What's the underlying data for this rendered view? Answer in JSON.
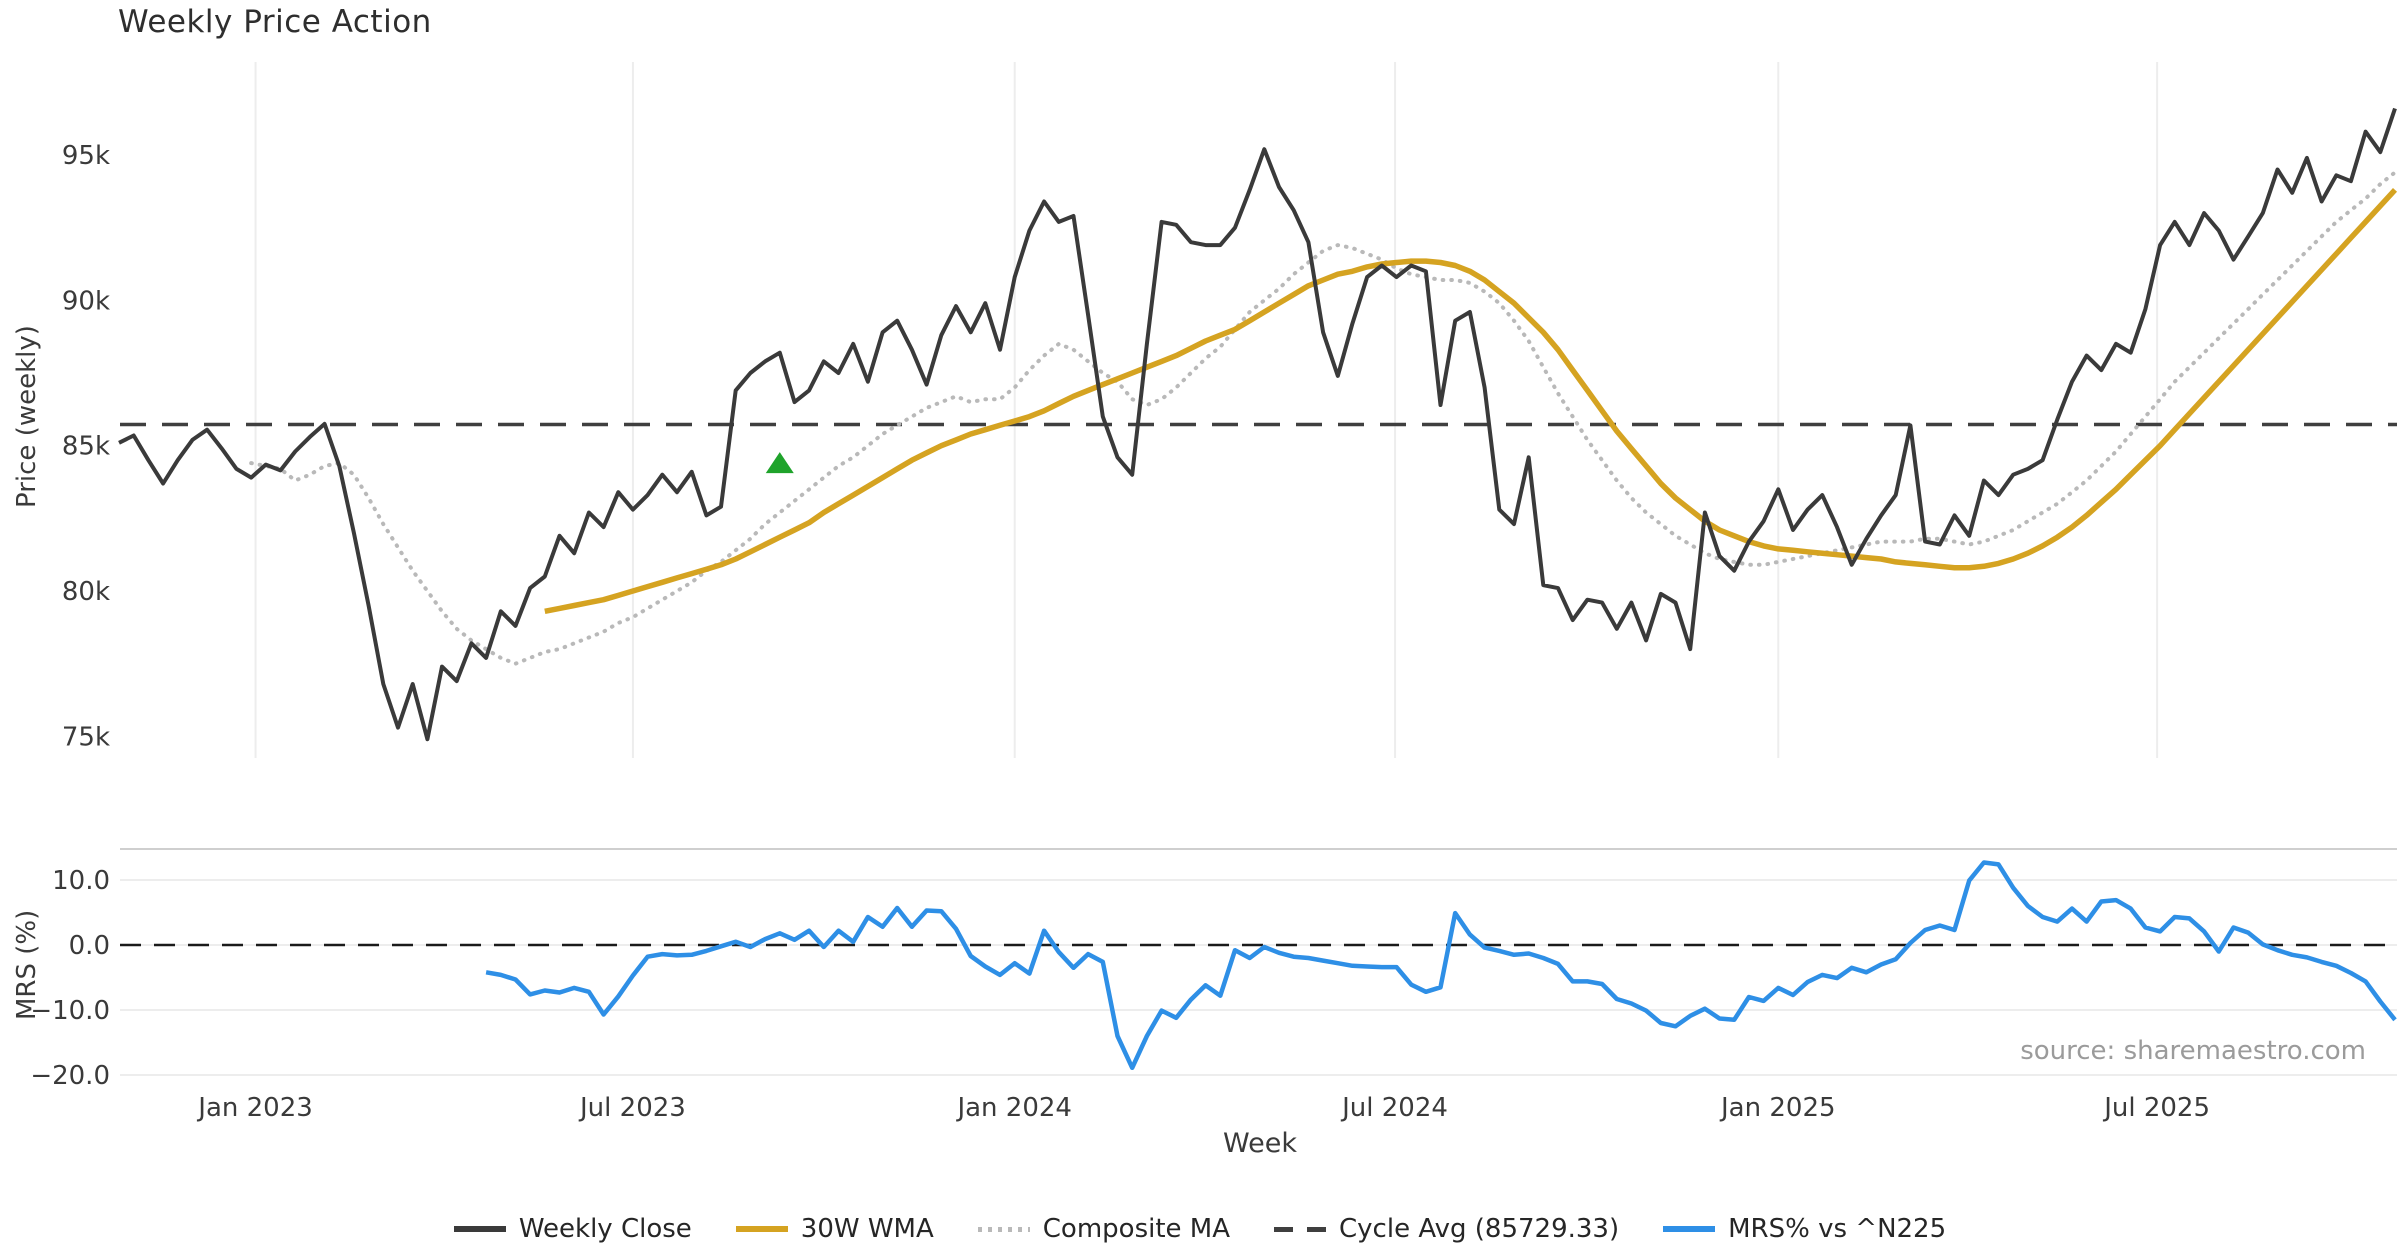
{
  "title": "Weekly Price Action",
  "source_note": "source: sharemaestro.com",
  "axes": {
    "price_ylabel": "Price (weekly)",
    "mrs_ylabel": "MRS (%)",
    "xlabel": "Week",
    "price_ticks": [
      {
        "label": "95k",
        "value": 95000
      },
      {
        "label": "90k",
        "value": 90000
      },
      {
        "label": "85k",
        "value": 85000
      },
      {
        "label": "80k",
        "value": 80000
      },
      {
        "label": "75k",
        "value": 75000
      }
    ],
    "mrs_ticks": [
      {
        "label": "10.0",
        "value": 10
      },
      {
        "label": "0.0",
        "value": 0
      },
      {
        "label": "−10.0",
        "value": -10
      },
      {
        "label": "−20.0",
        "value": -20
      }
    ],
    "x_ticks": [
      {
        "week": 9.3,
        "label": "Jan 2023"
      },
      {
        "week": 35.0,
        "label": "Jul 2023"
      },
      {
        "week": 61.0,
        "label": "Jan 2024"
      },
      {
        "week": 86.9,
        "label": "Jul 2024"
      },
      {
        "week": 113.0,
        "label": "Jan 2025"
      },
      {
        "week": 138.8,
        "label": "Jul 2025"
      }
    ]
  },
  "legend": {
    "items": [
      {
        "label": "Weekly Close",
        "style": "solid",
        "color": "#3a3a3a"
      },
      {
        "label": "30W WMA",
        "style": "solid",
        "color": "#d5a321"
      },
      {
        "label": "Composite MA",
        "style": "dotted",
        "color": "#b9b9b9"
      },
      {
        "label": "Cycle Avg (85729.33)",
        "style": "dashed",
        "color": "#3f3f3f"
      },
      {
        "label": "MRS% vs ^N225",
        "style": "solid",
        "color": "#2e8fe6"
      }
    ]
  },
  "colors": {
    "close": "#3a3a3a",
    "wma30": "#d5a321",
    "composite": "#b9b9b9",
    "cycle_avg": "#3f3f3f",
    "mrs": "#2e8fe6",
    "marker": "#1fa32b",
    "grid": "#ededed",
    "spine": "#cfcfcf",
    "zero_dash": "#1a1a1a",
    "text": "#3a3a3a",
    "muted": "#9b9b9b"
  },
  "chart_data": {
    "type": "line",
    "x_unit": "week_index",
    "weeks_total": 156,
    "title": "Weekly Price Action",
    "panels": [
      {
        "name": "price",
        "ylabel": "Price (weekly)",
        "ylim": [
          74250,
          98200
        ],
        "grid": "vertical"
      },
      {
        "name": "mrs",
        "ylabel": "MRS (%)",
        "ylim": [
          -20.5,
          14.8
        ],
        "grid": "horizontal"
      }
    ],
    "cycle_avg": 85729.33,
    "marker": {
      "shape": "triangle-up",
      "color": "#1fa32b",
      "week": 45,
      "price": 84400
    },
    "series": [
      {
        "name": "Weekly Close",
        "panel": "price",
        "style": "solid",
        "color": "#3a3a3a",
        "width": 4,
        "values": [
          85100,
          85350,
          84500,
          83700,
          84500,
          85200,
          85550,
          84900,
          84200,
          83900,
          84350,
          84150,
          84800,
          85300,
          85750,
          84300,
          82000,
          79500,
          76800,
          75300,
          76800,
          74900,
          77400,
          76900,
          78200,
          77700,
          79300,
          78800,
          80100,
          80500,
          81900,
          81300,
          82700,
          82200,
          83400,
          82800,
          83300,
          84000,
          83400,
          84100,
          82600,
          82900,
          86900,
          87500,
          87900,
          88200,
          86500,
          86900,
          87900,
          87500,
          88500,
          87200,
          88900,
          89300,
          88300,
          87100,
          88800,
          89800,
          88900,
          89900,
          88300,
          90800,
          92400,
          93400,
          92700,
          92900,
          89500,
          86000,
          84600,
          84000,
          88500,
          92700,
          92600,
          92000,
          91900,
          91900,
          92500,
          93800,
          95200,
          93900,
          93100,
          92000,
          88900,
          87400,
          89200,
          90800,
          91200,
          90800,
          91200,
          91000,
          86400,
          89300,
          89600,
          87000,
          82800,
          82300,
          84600,
          80200,
          80100,
          79000,
          79700,
          79600,
          78700,
          79600,
          78300,
          79900,
          79600,
          78000,
          82700,
          81200,
          80700,
          81700,
          82400,
          83500,
          82100,
          82800,
          83300,
          82200,
          80900,
          81800,
          82600,
          83300,
          85700,
          81700,
          81600,
          82600,
          81900,
          83800,
          83300,
          84000,
          84200,
          84500,
          85900,
          87200,
          88100,
          87600,
          88500,
          88200,
          89700,
          91900,
          92700,
          91900,
          93000,
          92400,
          91400,
          92200,
          93000,
          94500,
          93700,
          94900,
          93400,
          94300,
          94100,
          95800,
          95100,
          96600
        ]
      },
      {
        "name": "30W WMA",
        "panel": "price",
        "style": "solid",
        "color": "#d5a321",
        "width": 5.5,
        "values": [
          null,
          null,
          null,
          null,
          null,
          null,
          null,
          null,
          null,
          null,
          null,
          null,
          null,
          null,
          null,
          null,
          null,
          null,
          null,
          null,
          null,
          null,
          null,
          null,
          null,
          null,
          null,
          null,
          null,
          79300,
          79400,
          79500,
          79600,
          79700,
          79850,
          80000,
          80150,
          80300,
          80450,
          80600,
          80750,
          80900,
          81100,
          81350,
          81600,
          81850,
          82100,
          82350,
          82700,
          83000,
          83300,
          83600,
          83900,
          84200,
          84500,
          84750,
          85000,
          85200,
          85400,
          85550,
          85700,
          85850,
          86000,
          86200,
          86450,
          86700,
          86900,
          87100,
          87300,
          87500,
          87700,
          87900,
          88100,
          88350,
          88600,
          88800,
          89000,
          89300,
          89600,
          89900,
          90200,
          90500,
          90700,
          90900,
          91000,
          91150,
          91250,
          91300,
          91350,
          91350,
          91300,
          91200,
          91000,
          90700,
          90300,
          89900,
          89400,
          88900,
          88300,
          87600,
          86900,
          86200,
          85500,
          84900,
          84300,
          83700,
          83200,
          82800,
          82400,
          82100,
          81900,
          81700,
          81550,
          81450,
          81400,
          81350,
          81300,
          81250,
          81200,
          81150,
          81100,
          81000,
          80950,
          80900,
          80850,
          80800,
          80800,
          80850,
          80950,
          81100,
          81300,
          81550,
          81850,
          82200,
          82600,
          83050,
          83500,
          84000,
          84500,
          85000,
          85550,
          86100,
          86650,
          87200,
          87750,
          88300,
          88850,
          89400,
          89950,
          90500,
          91050,
          91600,
          92150,
          92700,
          93250,
          93800
        ]
      },
      {
        "name": "Composite MA",
        "panel": "price",
        "style": "dotted",
        "color": "#b9b9b9",
        "width": 4,
        "values": [
          null,
          null,
          null,
          null,
          null,
          null,
          null,
          null,
          null,
          84400,
          84300,
          84200,
          83800,
          84000,
          84300,
          84400,
          84000,
          83200,
          82300,
          81500,
          80700,
          80000,
          79300,
          78700,
          78300,
          78000,
          77700,
          77500,
          77700,
          77900,
          78000,
          78200,
          78400,
          78600,
          78900,
          79100,
          79400,
          79700,
          80000,
          80300,
          80700,
          81000,
          81400,
          81800,
          82300,
          82700,
          83100,
          83500,
          83900,
          84300,
          84600,
          85000,
          85400,
          85700,
          86000,
          86300,
          86500,
          86700,
          86500,
          86600,
          86600,
          87000,
          87600,
          88100,
          88500,
          88300,
          87900,
          87500,
          87200,
          86600,
          86400,
          86600,
          87000,
          87500,
          88000,
          88400,
          89000,
          89600,
          90000,
          90400,
          90900,
          91300,
          91700,
          91900,
          91800,
          91600,
          91400,
          91100,
          90900,
          90800,
          90700,
          90700,
          90600,
          90300,
          89900,
          89300,
          88600,
          87700,
          86800,
          86000,
          85200,
          84500,
          83800,
          83200,
          82700,
          82300,
          81900,
          81600,
          81300,
          81100,
          81000,
          80900,
          80900,
          81000,
          81100,
          81200,
          81300,
          81400,
          81500,
          81600,
          81700,
          81700,
          81700,
          81800,
          81800,
          81700,
          81600,
          81700,
          81900,
          82100,
          82400,
          82700,
          83000,
          83400,
          83800,
          84300,
          84800,
          85400,
          86000,
          86600,
          87200,
          87700,
          88200,
          88700,
          89200,
          89700,
          90200,
          90700,
          91200,
          91700,
          92200,
          92700,
          93100,
          93500,
          94000,
          94400
        ]
      },
      {
        "name": "MRS% vs ^N225",
        "panel": "mrs",
        "style": "solid",
        "color": "#2e8fe6",
        "width": 4.5,
        "values": [
          null,
          null,
          null,
          null,
          null,
          null,
          null,
          null,
          null,
          null,
          null,
          null,
          null,
          null,
          null,
          null,
          null,
          null,
          null,
          null,
          null,
          null,
          null,
          null,
          null,
          -4.2,
          -4.6,
          -5.3,
          -7.6,
          -7.0,
          -7.3,
          -6.6,
          -7.2,
          -10.7,
          -7.9,
          -4.7,
          -1.8,
          -1.4,
          -1.6,
          -1.5,
          -0.9,
          -0.2,
          0.5,
          -0.3,
          0.9,
          1.8,
          0.8,
          2.2,
          -0.3,
          2.2,
          0.5,
          4.3,
          2.8,
          5.7,
          2.8,
          5.3,
          5.2,
          2.5,
          -1.7,
          -3.3,
          -4.6,
          -2.8,
          -4.4,
          2.2,
          -1.1,
          -3.5,
          -1.4,
          -2.6,
          -14.0,
          -18.9,
          -14.0,
          -10.1,
          -11.2,
          -8.4,
          -6.2,
          -7.8,
          -0.8,
          -2.0,
          -0.3,
          -1.2,
          -1.8,
          -2.0,
          -2.4,
          -2.8,
          -3.2,
          -3.3,
          -3.4,
          -3.4,
          -6.1,
          -7.2,
          -6.5,
          4.9,
          1.6,
          -0.4,
          -0.9,
          -1.5,
          -1.3,
          -2.0,
          -2.9,
          -5.6,
          -5.6,
          -6.0,
          -8.3,
          -9.0,
          -10.1,
          -12.0,
          -12.5,
          -10.9,
          -9.8,
          -11.3,
          -11.5,
          -8.0,
          -8.6,
          -6.6,
          -7.7,
          -5.7,
          -4.6,
          -5.1,
          -3.5,
          -4.2,
          -3.0,
          -2.2,
          0.3,
          2.3,
          3.0,
          2.3,
          9.9,
          12.7,
          12.4,
          8.8,
          6.0,
          4.3,
          3.6,
          5.6,
          3.6,
          6.7,
          6.9,
          5.6,
          2.7,
          2.1,
          4.3,
          4.1,
          2.1,
          -1.0,
          2.7,
          1.9,
          0.1,
          -0.8,
          -1.5,
          -1.9,
          -2.6,
          -3.2,
          -4.3,
          -5.6,
          -8.7,
          -11.5
        ]
      }
    ]
  }
}
